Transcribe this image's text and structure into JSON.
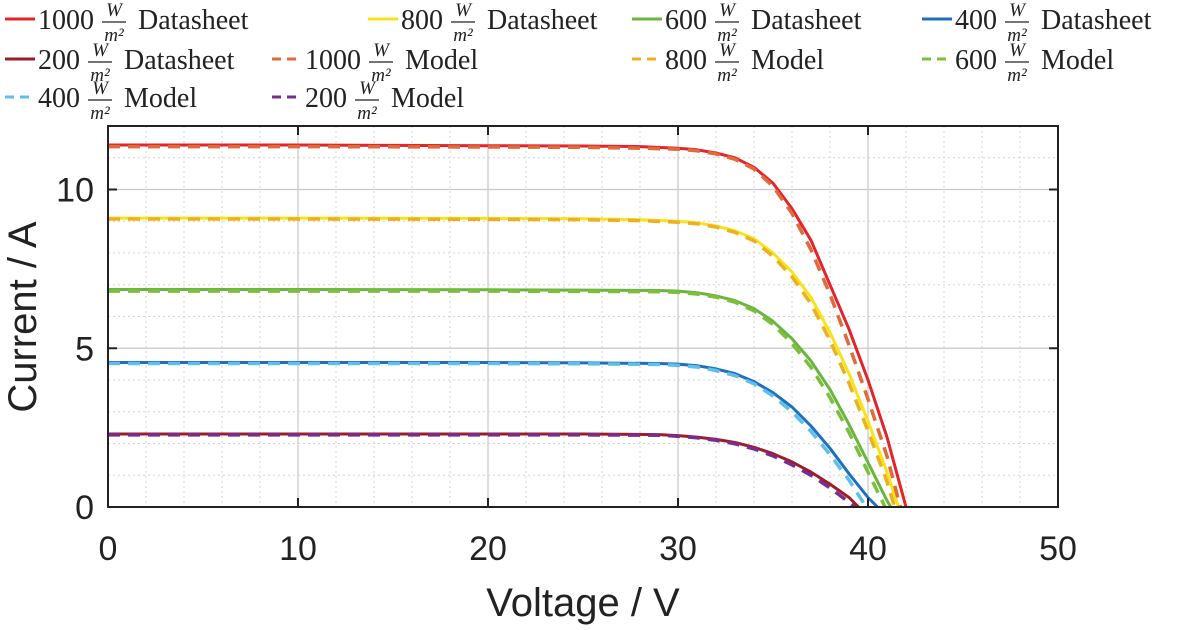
{
  "chart_data": {
    "type": "line",
    "xlabel": "Voltage / V",
    "ylabel": "Current / A",
    "xlim": [
      0,
      50
    ],
    "ylim": [
      0,
      12
    ],
    "xticks": [
      0,
      10,
      20,
      30,
      40,
      50
    ],
    "yticks": [
      0,
      5,
      10
    ],
    "grid": true,
    "minor_grid": true,
    "legend_position": "top",
    "unit": {
      "numerator": "W",
      "denominator": "m²"
    },
    "series": [
      {
        "name": "1000",
        "suffix": "Datasheet",
        "color": "#e3242b",
        "dash": "solid",
        "points": [
          [
            0,
            11.4
          ],
          [
            5,
            11.4
          ],
          [
            10,
            11.4
          ],
          [
            15,
            11.39
          ],
          [
            20,
            11.38
          ],
          [
            25,
            11.37
          ],
          [
            28,
            11.35
          ],
          [
            30,
            11.3
          ],
          [
            31,
            11.25
          ],
          [
            32,
            11.15
          ],
          [
            33,
            11.0
          ],
          [
            34,
            10.7
          ],
          [
            35,
            10.2
          ],
          [
            36,
            9.4
          ],
          [
            37,
            8.4
          ],
          [
            38,
            7.0
          ],
          [
            39,
            5.6
          ],
          [
            40,
            4.0
          ],
          [
            41,
            2.2
          ],
          [
            41.5,
            1.1
          ],
          [
            42,
            0
          ]
        ]
      },
      {
        "name": "800",
        "suffix": "Datasheet",
        "color": "#f7e31a",
        "dash": "solid",
        "points": [
          [
            0,
            9.1
          ],
          [
            10,
            9.1
          ],
          [
            20,
            9.09
          ],
          [
            25,
            9.08
          ],
          [
            28,
            9.05
          ],
          [
            30,
            9.0
          ],
          [
            31,
            8.95
          ],
          [
            32,
            8.85
          ],
          [
            33,
            8.7
          ],
          [
            34,
            8.45
          ],
          [
            35,
            8.0
          ],
          [
            36,
            7.4
          ],
          [
            37,
            6.6
          ],
          [
            38,
            5.5
          ],
          [
            39,
            4.2
          ],
          [
            40,
            2.7
          ],
          [
            41,
            1.1
          ],
          [
            41.6,
            0
          ]
        ]
      },
      {
        "name": "600",
        "suffix": "Datasheet",
        "color": "#6ab540",
        "dash": "solid",
        "points": [
          [
            0,
            6.85
          ],
          [
            10,
            6.85
          ],
          [
            20,
            6.84
          ],
          [
            25,
            6.83
          ],
          [
            29,
            6.82
          ],
          [
            30,
            6.8
          ],
          [
            31,
            6.75
          ],
          [
            32,
            6.65
          ],
          [
            33,
            6.5
          ],
          [
            34,
            6.25
          ],
          [
            35,
            5.85
          ],
          [
            36,
            5.3
          ],
          [
            37,
            4.6
          ],
          [
            38,
            3.7
          ],
          [
            39,
            2.6
          ],
          [
            40,
            1.4
          ],
          [
            41,
            0.2
          ],
          [
            41.2,
            0
          ]
        ]
      },
      {
        "name": "400",
        "suffix": "Datasheet",
        "color": "#1f6fbf",
        "dash": "solid",
        "points": [
          [
            0,
            4.55
          ],
          [
            10,
            4.55
          ],
          [
            20,
            4.55
          ],
          [
            25,
            4.54
          ],
          [
            29,
            4.52
          ],
          [
            30,
            4.5
          ],
          [
            31,
            4.45
          ],
          [
            32,
            4.35
          ],
          [
            33,
            4.2
          ],
          [
            34,
            3.95
          ],
          [
            35,
            3.6
          ],
          [
            36,
            3.15
          ],
          [
            37,
            2.55
          ],
          [
            38,
            1.85
          ],
          [
            39,
            1.05
          ],
          [
            40,
            0.3
          ],
          [
            40.5,
            0
          ]
        ]
      },
      {
        "name": "200",
        "suffix": "Datasheet",
        "color": "#9e1b2b",
        "dash": "solid",
        "points": [
          [
            0,
            2.3
          ],
          [
            10,
            2.3
          ],
          [
            20,
            2.3
          ],
          [
            25,
            2.3
          ],
          [
            29,
            2.28
          ],
          [
            30,
            2.25
          ],
          [
            31,
            2.2
          ],
          [
            32,
            2.13
          ],
          [
            33,
            2.03
          ],
          [
            34,
            1.88
          ],
          [
            35,
            1.68
          ],
          [
            36,
            1.42
          ],
          [
            37,
            1.1
          ],
          [
            38,
            0.72
          ],
          [
            39,
            0.3
          ],
          [
            39.5,
            0
          ]
        ]
      },
      {
        "name": "1000",
        "suffix": "Model",
        "color": "#e06a3a",
        "dash": "dashed",
        "points": [
          [
            0,
            11.35
          ],
          [
            10,
            11.35
          ],
          [
            20,
            11.34
          ],
          [
            25,
            11.33
          ],
          [
            28,
            11.3
          ],
          [
            30,
            11.27
          ],
          [
            31,
            11.22
          ],
          [
            32,
            11.12
          ],
          [
            33,
            10.95
          ],
          [
            34,
            10.65
          ],
          [
            35,
            10.1
          ],
          [
            36,
            9.25
          ],
          [
            37,
            8.1
          ],
          [
            38,
            6.7
          ],
          [
            39,
            5.1
          ],
          [
            40,
            3.4
          ],
          [
            41,
            1.6
          ],
          [
            41.7,
            0
          ]
        ]
      },
      {
        "name": "800",
        "suffix": "Model",
        "color": "#efb020",
        "dash": "dashed",
        "points": [
          [
            0,
            9.07
          ],
          [
            10,
            9.07
          ],
          [
            20,
            9.06
          ],
          [
            25,
            9.05
          ],
          [
            28,
            9.02
          ],
          [
            30,
            8.97
          ],
          [
            31,
            8.92
          ],
          [
            32,
            8.82
          ],
          [
            33,
            8.65
          ],
          [
            34,
            8.38
          ],
          [
            35,
            7.9
          ],
          [
            36,
            7.25
          ],
          [
            37,
            6.4
          ],
          [
            38,
            5.25
          ],
          [
            39,
            3.9
          ],
          [
            40,
            2.4
          ],
          [
            41,
            0.8
          ],
          [
            41.4,
            0
          ]
        ]
      },
      {
        "name": "600",
        "suffix": "Model",
        "color": "#7cbf3c",
        "dash": "dashed",
        "points": [
          [
            0,
            6.8
          ],
          [
            10,
            6.8
          ],
          [
            20,
            6.8
          ],
          [
            25,
            6.79
          ],
          [
            29,
            6.78
          ],
          [
            30,
            6.76
          ],
          [
            31,
            6.71
          ],
          [
            32,
            6.61
          ],
          [
            33,
            6.45
          ],
          [
            34,
            6.18
          ],
          [
            35,
            5.75
          ],
          [
            36,
            5.15
          ],
          [
            37,
            4.4
          ],
          [
            38,
            3.45
          ],
          [
            39,
            2.35
          ],
          [
            40,
            1.1
          ],
          [
            40.9,
            0
          ]
        ]
      },
      {
        "name": "400",
        "suffix": "Model",
        "color": "#5bc0ea",
        "dash": "dashed",
        "points": [
          [
            0,
            4.52
          ],
          [
            10,
            4.52
          ],
          [
            20,
            4.52
          ],
          [
            25,
            4.51
          ],
          [
            29,
            4.49
          ],
          [
            30,
            4.46
          ],
          [
            31,
            4.41
          ],
          [
            32,
            4.3
          ],
          [
            33,
            4.14
          ],
          [
            34,
            3.88
          ],
          [
            35,
            3.5
          ],
          [
            36,
            3.0
          ],
          [
            37,
            2.38
          ],
          [
            38,
            1.65
          ],
          [
            39,
            0.85
          ],
          [
            39.9,
            0
          ]
        ]
      },
      {
        "name": "200",
        "suffix": "Model",
        "color": "#7a2c8e",
        "dash": "dashed",
        "points": [
          [
            0,
            2.27
          ],
          [
            10,
            2.27
          ],
          [
            20,
            2.27
          ],
          [
            25,
            2.27
          ],
          [
            29,
            2.26
          ],
          [
            30,
            2.23
          ],
          [
            31,
            2.18
          ],
          [
            32,
            2.1
          ],
          [
            33,
            1.99
          ],
          [
            34,
            1.83
          ],
          [
            35,
            1.61
          ],
          [
            36,
            1.33
          ],
          [
            37,
            1.0
          ],
          [
            38,
            0.6
          ],
          [
            39,
            0.15
          ],
          [
            39.3,
            0
          ]
        ]
      }
    ]
  }
}
